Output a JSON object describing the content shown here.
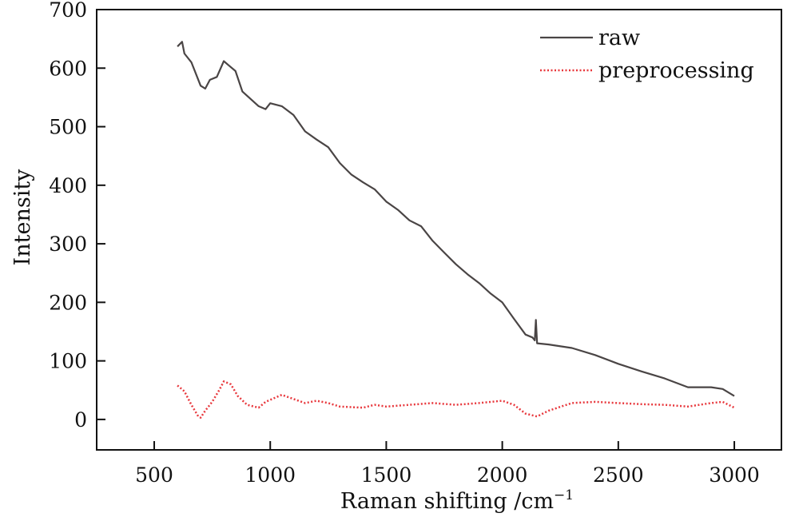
{
  "chart_data": {
    "type": "line",
    "title": "",
    "xlabel": "Raman shifting /cm",
    "xlabel_sup": "−1",
    "ylabel": "Intensity",
    "xlim": [
      252,
      3203
    ],
    "ylim": [
      -52,
      700
    ],
    "xticks": [
      500,
      1000,
      1500,
      2000,
      2500,
      3000
    ],
    "yticks": [
      0,
      100,
      200,
      300,
      400,
      500,
      600,
      700
    ],
    "grid": false,
    "legend_position": "top-right",
    "series": [
      {
        "name": "raw",
        "color": "#4a4545",
        "style": "solid",
        "x": [
          600,
          620,
          630,
          660,
          700,
          720,
          740,
          770,
          800,
          820,
          850,
          880,
          950,
          980,
          1000,
          1050,
          1100,
          1150,
          1200,
          1250,
          1300,
          1350,
          1400,
          1450,
          1500,
          1550,
          1600,
          1650,
          1700,
          1750,
          1800,
          1850,
          1900,
          1950,
          2000,
          2050,
          2100,
          2130,
          2140,
          2145,
          2150,
          2200,
          2300,
          2400,
          2500,
          2600,
          2700,
          2800,
          2900,
          2950,
          3000
        ],
        "y": [
          637,
          645,
          625,
          610,
          570,
          565,
          580,
          585,
          612,
          605,
          595,
          560,
          535,
          530,
          540,
          535,
          520,
          492,
          478,
          465,
          438,
          418,
          405,
          393,
          372,
          358,
          340,
          330,
          305,
          285,
          265,
          248,
          233,
          215,
          200,
          172,
          145,
          140,
          135,
          170,
          130,
          128,
          122,
          110,
          95,
          82,
          70,
          55,
          55,
          52,
          40
        ]
      },
      {
        "name": "preprocessing",
        "color": "#e8383d",
        "style": "dotted",
        "x": [
          600,
          630,
          660,
          690,
          700,
          720,
          750,
          780,
          800,
          830,
          860,
          900,
          950,
          980,
          1050,
          1100,
          1150,
          1200,
          1250,
          1300,
          1400,
          1450,
          1500,
          1600,
          1700,
          1800,
          1900,
          2000,
          2050,
          2100,
          2150,
          2200,
          2300,
          2400,
          2500,
          2600,
          2700,
          2800,
          2900,
          2950,
          3000
        ],
        "y": [
          58,
          48,
          25,
          5,
          3,
          15,
          30,
          50,
          65,
          60,
          40,
          25,
          20,
          30,
          42,
          35,
          28,
          32,
          28,
          22,
          20,
          25,
          22,
          25,
          28,
          25,
          28,
          32,
          25,
          10,
          5,
          15,
          28,
          30,
          28,
          26,
          25,
          22,
          28,
          30,
          20
        ]
      }
    ]
  }
}
